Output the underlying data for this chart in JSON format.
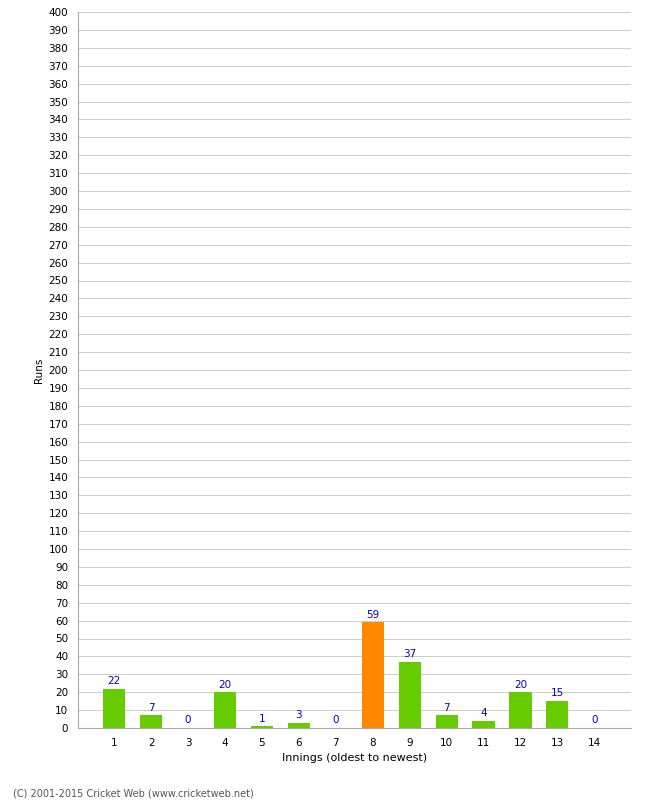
{
  "xlabel": "Innings (oldest to newest)",
  "ylabel": "Runs",
  "categories": [
    1,
    2,
    3,
    4,
    5,
    6,
    7,
    8,
    9,
    10,
    11,
    12,
    13,
    14
  ],
  "values": [
    22,
    7,
    0,
    20,
    1,
    3,
    0,
    59,
    37,
    7,
    4,
    20,
    15,
    0
  ],
  "bar_colors": [
    "#66cc00",
    "#66cc00",
    "#66cc00",
    "#66cc00",
    "#66cc00",
    "#66cc00",
    "#66cc00",
    "#ff8800",
    "#66cc00",
    "#66cc00",
    "#66cc00",
    "#66cc00",
    "#66cc00",
    "#66cc00"
  ],
  "ylim": [
    0,
    400
  ],
  "yticks": [
    0,
    10,
    20,
    30,
    40,
    50,
    60,
    70,
    80,
    90,
    100,
    110,
    120,
    130,
    140,
    150,
    160,
    170,
    180,
    190,
    200,
    210,
    220,
    230,
    240,
    250,
    260,
    270,
    280,
    290,
    300,
    310,
    320,
    330,
    340,
    350,
    360,
    370,
    380,
    390,
    400
  ],
  "label_color": "#0000cc",
  "background_color": "#ffffff",
  "grid_color": "#cccccc",
  "footer": "(C) 2001-2015 Cricket Web (www.cricketweb.net)",
  "label_fontsize": 7.5,
  "axis_tick_fontsize": 7.5,
  "xlabel_fontsize": 8,
  "ylabel_fontsize": 7.5,
  "bar_width": 0.6
}
